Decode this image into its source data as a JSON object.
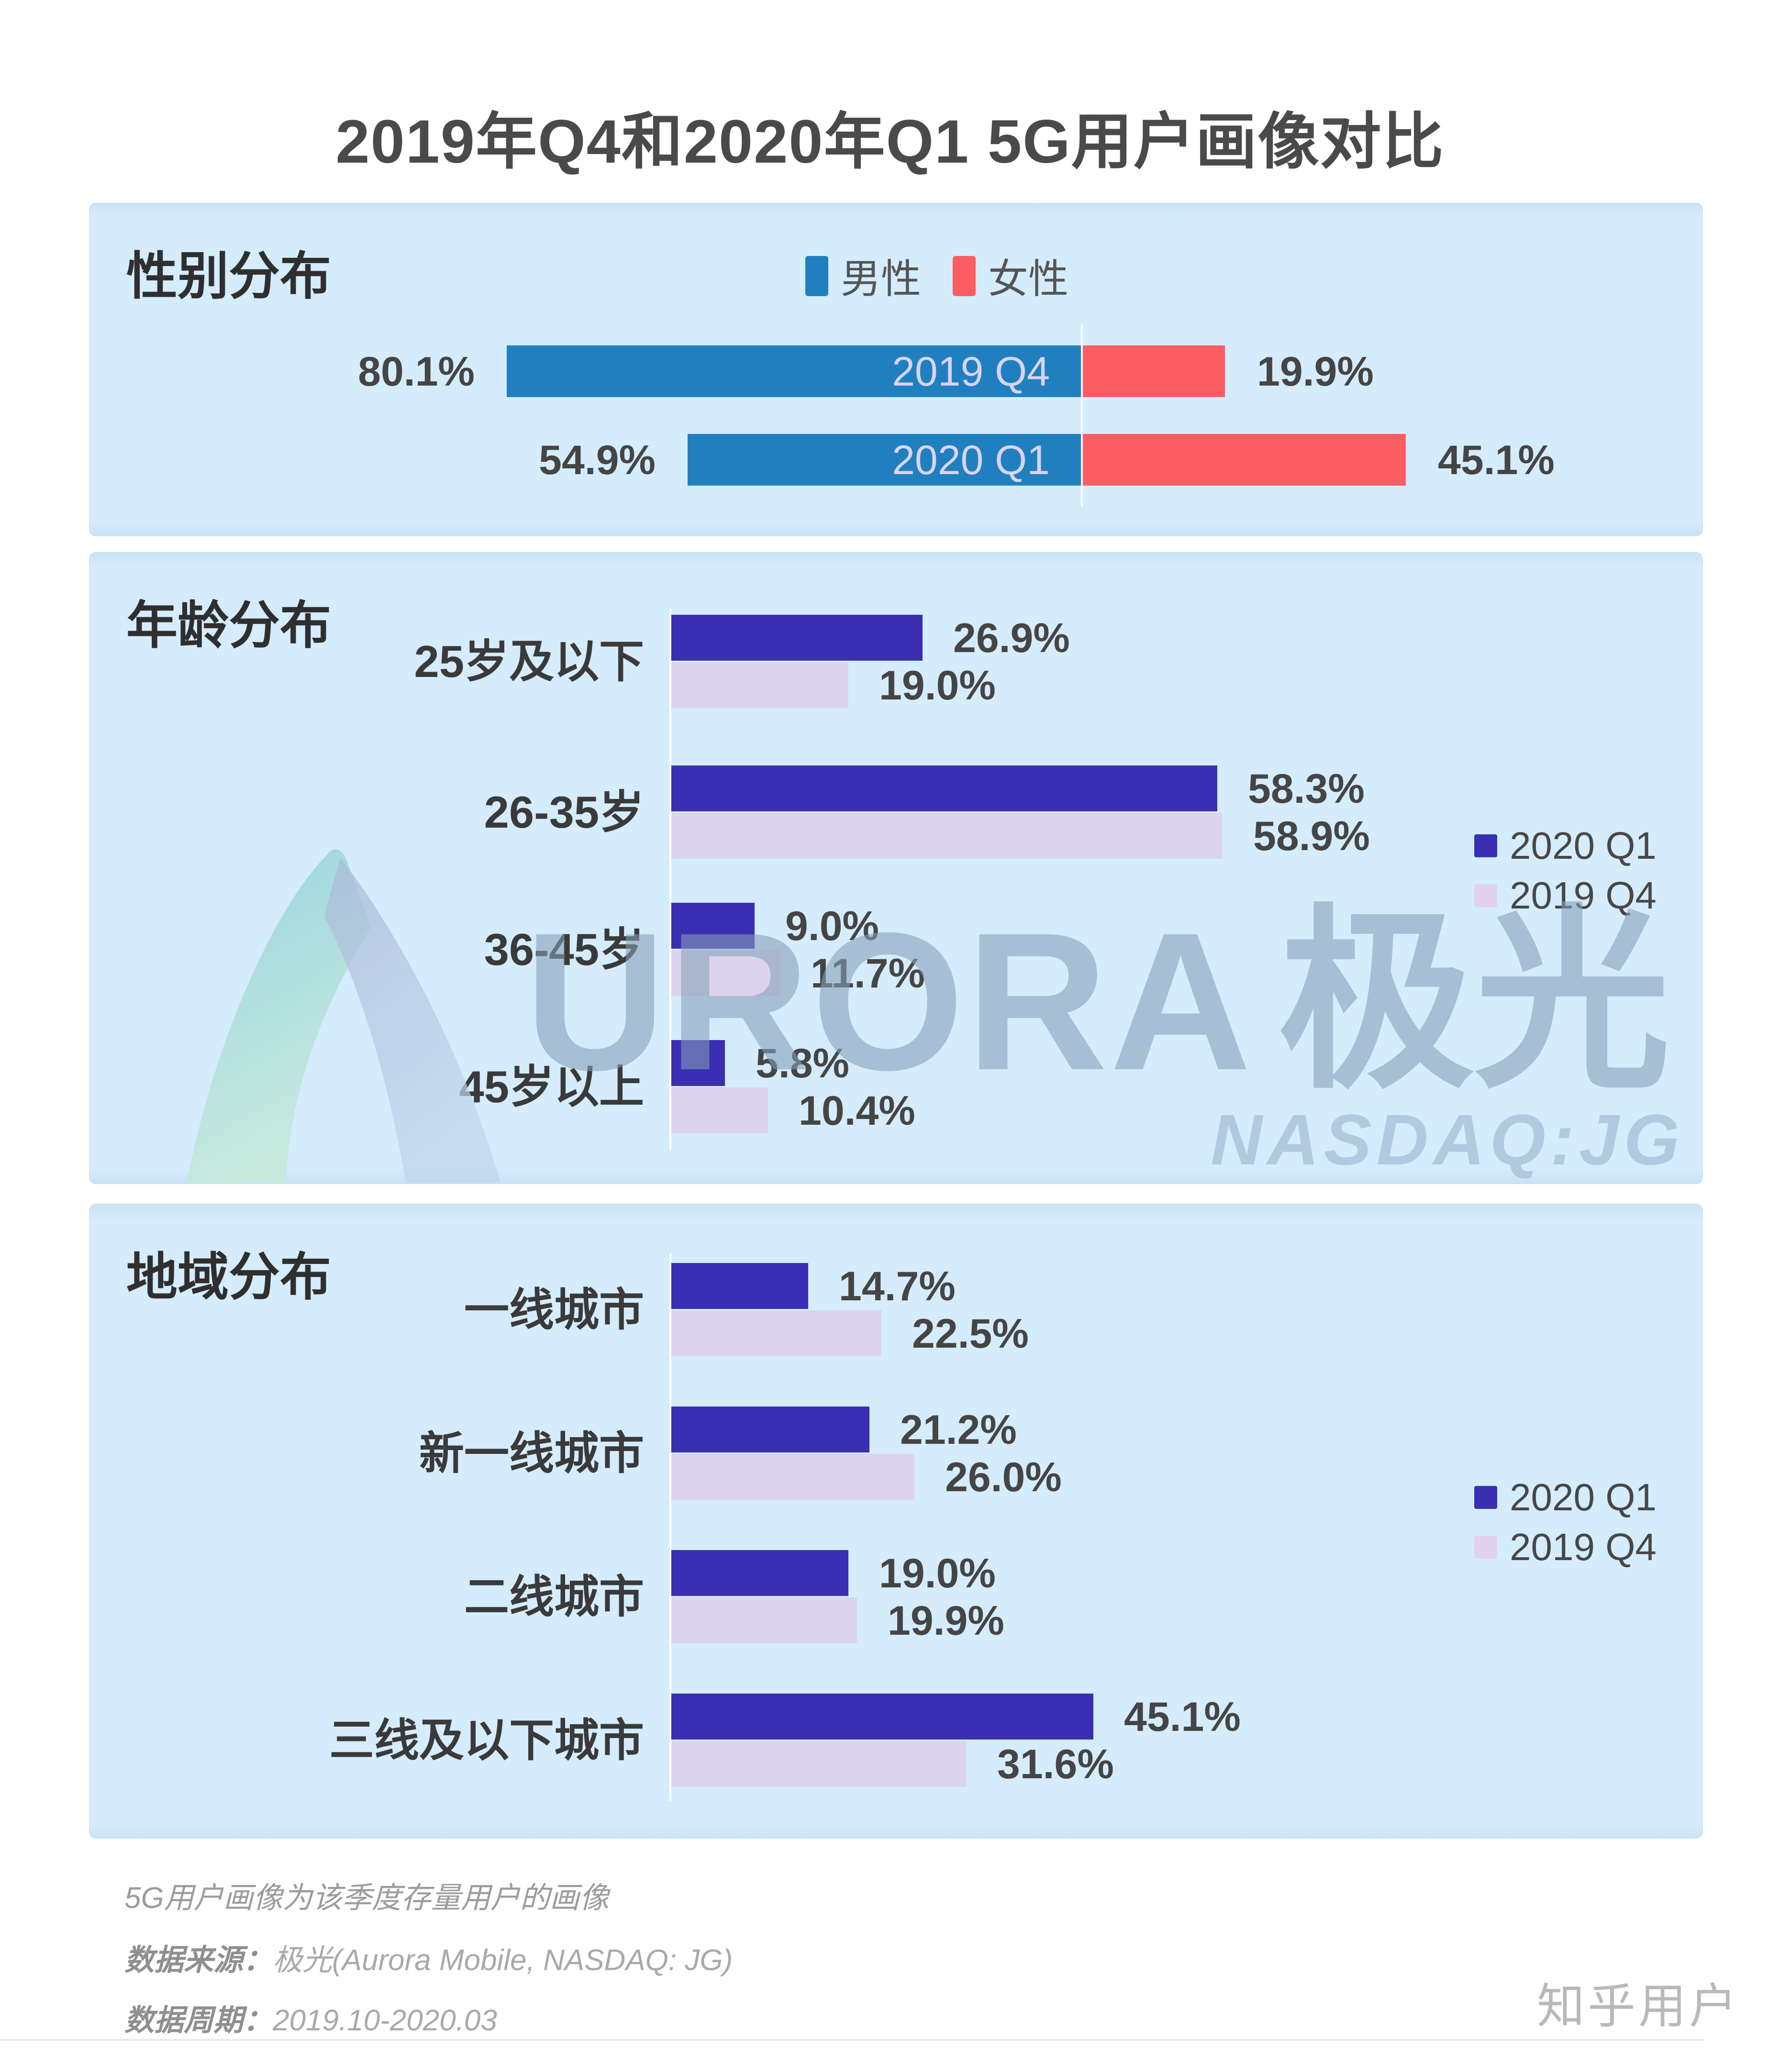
{
  "title": "2019年Q4和2020年Q1 5G用户画像对比",
  "watermark": {
    "brand_latin": "URORA",
    "brand_cjk": "极光",
    "ticker": "NASDAQ:JG"
  },
  "gender": {
    "heading": "性别分布",
    "legend": {
      "male": "男性",
      "female": "女性"
    },
    "rows": [
      {
        "quarter": "2019 Q4",
        "male": 80.1,
        "male_label": "80.1%",
        "female": 19.9,
        "female_label": "19.9%"
      },
      {
        "quarter": "2020 Q1",
        "male": 54.9,
        "male_label": "54.9%",
        "female": 45.1,
        "female_label": "45.1%"
      }
    ]
  },
  "age": {
    "heading": "年龄分布",
    "legend": {
      "current": "2020 Q1",
      "previous": "2019 Q4"
    },
    "rows": [
      {
        "label": "25岁及以下",
        "current": 26.9,
        "current_label": "26.9%",
        "previous": 19.0,
        "previous_label": "19.0%"
      },
      {
        "label": "26-35岁",
        "current": 58.3,
        "current_label": "58.3%",
        "previous": 58.9,
        "previous_label": "58.9%"
      },
      {
        "label": "36-45岁",
        "current": 9.0,
        "current_label": "9.0%",
        "previous": 11.7,
        "previous_label": "11.7%"
      },
      {
        "label": "45岁以上",
        "current": 5.8,
        "current_label": "5.8%",
        "previous": 10.4,
        "previous_label": "10.4%"
      }
    ]
  },
  "region": {
    "heading": "地域分布",
    "legend": {
      "current": "2020 Q1",
      "previous": "2019 Q4"
    },
    "rows": [
      {
        "label": "一线城市",
        "current": 14.7,
        "current_label": "14.7%",
        "previous": 22.5,
        "previous_label": "22.5%"
      },
      {
        "label": "新一线城市",
        "current": 21.2,
        "current_label": "21.2%",
        "previous": 26.0,
        "previous_label": "26.0%"
      },
      {
        "label": "二线城市",
        "current": 19.0,
        "current_label": "19.0%",
        "previous": 19.9,
        "previous_label": "19.9%"
      },
      {
        "label": "三线及以下城市",
        "current": 45.1,
        "current_label": "45.1%",
        "previous": 31.6,
        "previous_label": "31.6%"
      }
    ]
  },
  "footer": {
    "note": "5G用户画像为该季度存量用户的画像",
    "source_label": "数据来源：",
    "source_value": "极光(Aurora Mobile, NASDAQ: JG)",
    "period_label": "数据周期：",
    "period_value": "2019.10-2020.03",
    "watermark_user": "知乎用户"
  },
  "colors": {
    "panel_bg": "#d5ecfd",
    "male_blue": "#2080bf",
    "female_red": "#fb5d62",
    "q1_2020_indigo": "#3a2fb2",
    "q4_2019_lavender": "#dcd4ef",
    "title_gray": "#4a4a4a",
    "value_gray": "#454545",
    "bar_inner_label": "#d9d3f4",
    "footer_gray": "#9c9c9c",
    "divider": "#e9e9e9"
  },
  "chart_data": [
    {
      "type": "bar",
      "variant": "diverging-stacked-horizontal",
      "title": "性别分布",
      "legend_position": "top-center",
      "legend": [
        "男性",
        "女性"
      ],
      "categories": [
        "2019 Q4",
        "2020 Q1"
      ],
      "series": [
        {
          "name": "男性",
          "color": "#2080bf",
          "values": [
            80.1,
            54.9
          ]
        },
        {
          "name": "女性",
          "color": "#fb5d62",
          "values": [
            19.9,
            45.1
          ]
        }
      ],
      "unit": "%",
      "grid": false,
      "xlim": [
        0,
        100
      ]
    },
    {
      "type": "bar",
      "variant": "grouped-horizontal",
      "title": "年龄分布",
      "legend_position": "right",
      "legend": [
        "2020 Q1",
        "2019 Q4"
      ],
      "categories": [
        "25岁及以下",
        "26-35岁",
        "36-45岁",
        "45岁以上"
      ],
      "series": [
        {
          "name": "2020 Q1",
          "color": "#3a2fb2",
          "values": [
            26.9,
            58.3,
            9.0,
            5.8
          ]
        },
        {
          "name": "2019 Q4",
          "color": "#dcd4ef",
          "values": [
            19.0,
            58.9,
            11.7,
            10.4
          ]
        }
      ],
      "unit": "%",
      "grid": false,
      "xlim": [
        0,
        60
      ]
    },
    {
      "type": "bar",
      "variant": "grouped-horizontal",
      "title": "地域分布",
      "legend_position": "right",
      "legend": [
        "2020 Q1",
        "2019 Q4"
      ],
      "categories": [
        "一线城市",
        "新一线城市",
        "二线城市",
        "三线及以下城市"
      ],
      "series": [
        {
          "name": "2020 Q1",
          "color": "#3a2fb2",
          "values": [
            14.7,
            21.2,
            19.0,
            45.1
          ]
        },
        {
          "name": "2019 Q4",
          "color": "#dcd4ef",
          "values": [
            22.5,
            26.0,
            19.9,
            31.6
          ]
        }
      ],
      "unit": "%",
      "grid": false,
      "xlim": [
        0,
        50
      ]
    }
  ]
}
